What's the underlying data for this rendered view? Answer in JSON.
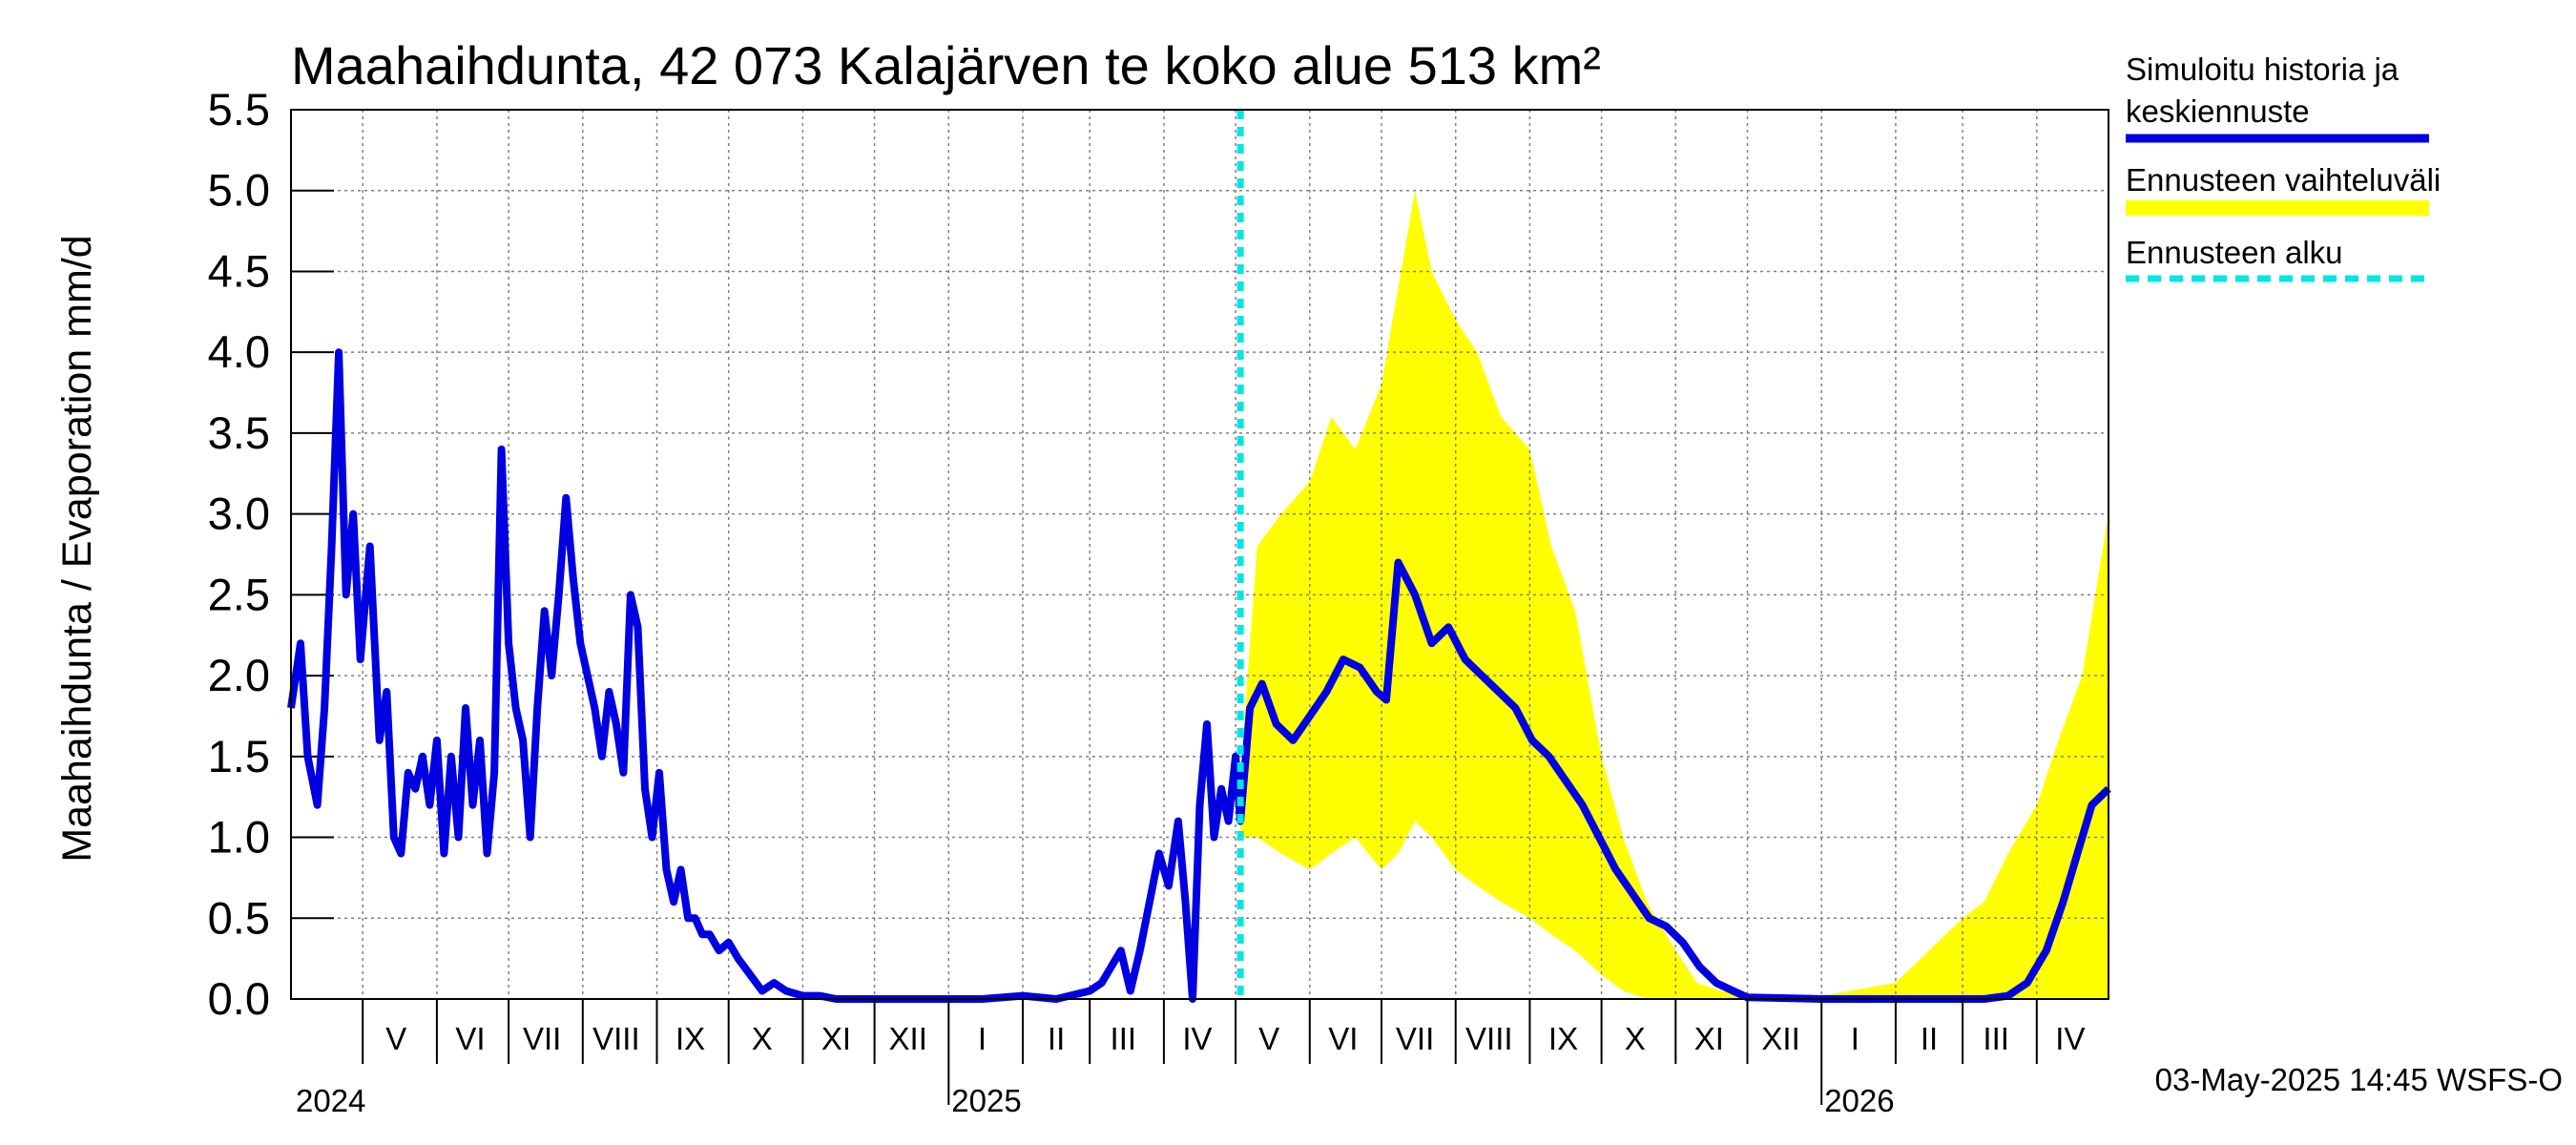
{
  "chart_data": {
    "type": "line",
    "title": "Maahaihdunta, 42 073 Kalajärven te koko alue 513 km²",
    "ylabel": "Maahaihdunta / Evaporation   mm/d",
    "ylim": [
      0,
      5.5
    ],
    "xlim": [
      "2024-04-01",
      "2026-05-01"
    ],
    "yticks": [
      "0.0",
      "0.5",
      "1.0",
      "1.5",
      "2.0",
      "2.5",
      "3.0",
      "3.5",
      "4.0",
      "4.5",
      "5.0",
      "5.5"
    ],
    "grid": true,
    "legend_position": "right",
    "months": [
      {
        "label": "V",
        "date": "2024-05-15"
      },
      {
        "label": "VI",
        "date": "2024-06-15"
      },
      {
        "label": "VII",
        "date": "2024-07-15"
      },
      {
        "label": "VIII",
        "date": "2024-08-15"
      },
      {
        "label": "IX",
        "date": "2024-09-15"
      },
      {
        "label": "X",
        "date": "2024-10-15"
      },
      {
        "label": "XI",
        "date": "2024-11-15"
      },
      {
        "label": "XII",
        "date": "2024-12-15"
      },
      {
        "label": "I",
        "date": "2025-01-15"
      },
      {
        "label": "II",
        "date": "2025-02-15"
      },
      {
        "label": "III",
        "date": "2025-03-15"
      },
      {
        "label": "IV",
        "date": "2025-04-15"
      },
      {
        "label": "V",
        "date": "2025-05-15"
      },
      {
        "label": "VI",
        "date": "2025-06-15"
      },
      {
        "label": "VII",
        "date": "2025-07-15"
      },
      {
        "label": "VIII",
        "date": "2025-08-15"
      },
      {
        "label": "IX",
        "date": "2025-09-15"
      },
      {
        "label": "X",
        "date": "2025-10-15"
      },
      {
        "label": "XI",
        "date": "2025-11-15"
      },
      {
        "label": "XII",
        "date": "2025-12-15"
      },
      {
        "label": "I",
        "date": "2026-01-15"
      },
      {
        "label": "II",
        "date": "2026-02-15"
      },
      {
        "label": "III",
        "date": "2026-03-15"
      },
      {
        "label": "IV",
        "date": "2026-04-15"
      }
    ],
    "years": [
      {
        "label": "2024",
        "date": "2024-04-01"
      },
      {
        "label": "2025",
        "date": "2025-01-01"
      },
      {
        "label": "2026",
        "date": "2026-01-01"
      }
    ],
    "forecast_start": "2025-05-03",
    "series": [
      {
        "name": "Simuloitu historia ja keskiennuste",
        "color": "#0000e0",
        "x": [
          "2024-04-01",
          "2024-04-05",
          "2024-04-08",
          "2024-04-12",
          "2024-04-15",
          "2024-04-18",
          "2024-04-21",
          "2024-04-24",
          "2024-04-27",
          "2024-04-30",
          "2024-05-04",
          "2024-05-08",
          "2024-05-11",
          "2024-05-14",
          "2024-05-17",
          "2024-05-20",
          "2024-05-23",
          "2024-05-26",
          "2024-05-29",
          "2024-06-01",
          "2024-06-04",
          "2024-06-07",
          "2024-06-10",
          "2024-06-13",
          "2024-06-16",
          "2024-06-19",
          "2024-06-22",
          "2024-06-25",
          "2024-06-28",
          "2024-07-01",
          "2024-07-04",
          "2024-07-07",
          "2024-07-10",
          "2024-07-13",
          "2024-07-16",
          "2024-07-19",
          "2024-07-22",
          "2024-07-25",
          "2024-07-28",
          "2024-07-31",
          "2024-08-03",
          "2024-08-06",
          "2024-08-09",
          "2024-08-12",
          "2024-08-15",
          "2024-08-18",
          "2024-08-21",
          "2024-08-24",
          "2024-08-27",
          "2024-08-30",
          "2024-09-02",
          "2024-09-05",
          "2024-09-08",
          "2024-09-11",
          "2024-09-14",
          "2024-09-17",
          "2024-09-20",
          "2024-09-23",
          "2024-09-27",
          "2024-10-01",
          "2024-10-05",
          "2024-10-10",
          "2024-10-15",
          "2024-10-20",
          "2024-10-25",
          "2024-11-01",
          "2024-11-08",
          "2024-11-15",
          "2024-11-22",
          "2024-12-01",
          "2024-12-15",
          "2025-01-01",
          "2025-01-15",
          "2025-02-01",
          "2025-02-15",
          "2025-03-01",
          "2025-03-06",
          "2025-03-10",
          "2025-03-14",
          "2025-03-18",
          "2025-03-22",
          "2025-03-26",
          "2025-03-30",
          "2025-04-03",
          "2025-04-07",
          "2025-04-10",
          "2025-04-13",
          "2025-04-16",
          "2025-04-19",
          "2025-04-22",
          "2025-04-25",
          "2025-04-28",
          "2025-05-01",
          "2025-05-03",
          "2025-05-07",
          "2025-05-12",
          "2025-05-18",
          "2025-05-25",
          "2025-06-01",
          "2025-06-08",
          "2025-06-15",
          "2025-06-22",
          "2025-06-29",
          "2025-07-03",
          "2025-07-08",
          "2025-07-15",
          "2025-07-22",
          "2025-07-29",
          "2025-08-05",
          "2025-08-12",
          "2025-08-19",
          "2025-08-26",
          "2025-09-02",
          "2025-09-09",
          "2025-09-16",
          "2025-09-23",
          "2025-09-30",
          "2025-10-07",
          "2025-10-14",
          "2025-10-21",
          "2025-10-28",
          "2025-11-04",
          "2025-11-11",
          "2025-11-18",
          "2025-11-25",
          "2025-12-01",
          "2026-01-01",
          "2026-02-01",
          "2026-03-01",
          "2026-03-10",
          "2026-03-20",
          "2026-03-28",
          "2026-04-05",
          "2026-04-12",
          "2026-04-18",
          "2026-04-24",
          "2026-05-01"
        ],
        "values": [
          1.8,
          2.2,
          1.5,
          1.2,
          1.8,
          2.8,
          4.0,
          2.5,
          3.0,
          2.1,
          2.8,
          1.6,
          1.9,
          1.0,
          0.9,
          1.4,
          1.3,
          1.5,
          1.2,
          1.6,
          0.9,
          1.5,
          1.0,
          1.8,
          1.2,
          1.6,
          0.9,
          1.4,
          3.4,
          2.2,
          1.8,
          1.6,
          1.0,
          1.8,
          2.4,
          2.0,
          2.5,
          3.1,
          2.6,
          2.2,
          2.0,
          1.8,
          1.5,
          1.9,
          1.7,
          1.4,
          2.5,
          2.3,
          1.3,
          1.0,
          1.4,
          0.8,
          0.6,
          0.8,
          0.5,
          0.5,
          0.4,
          0.4,
          0.3,
          0.35,
          0.25,
          0.15,
          0.05,
          0.1,
          0.05,
          0.02,
          0.02,
          0.0,
          0.0,
          0.0,
          0.0,
          0.0,
          0.0,
          0.02,
          0.0,
          0.05,
          0.1,
          0.2,
          0.3,
          0.05,
          0.3,
          0.6,
          0.9,
          0.7,
          1.1,
          0.6,
          0.0,
          1.2,
          1.7,
          1.0,
          1.3,
          1.1,
          1.5,
          1.1,
          1.8,
          1.95,
          1.7,
          1.6,
          1.75,
          1.9,
          2.1,
          2.05,
          1.9,
          1.85,
          2.7,
          2.5,
          2.2,
          2.3,
          2.1,
          2.0,
          1.9,
          1.8,
          1.6,
          1.5,
          1.35,
          1.2,
          1.0,
          0.8,
          0.65,
          0.5,
          0.45,
          0.35,
          0.2,
          0.1,
          0.05,
          0.01,
          0.0,
          0.0,
          0.0,
          0.0,
          0.02,
          0.1,
          0.3,
          0.6,
          0.9,
          1.2,
          1.3
        ]
      }
    ],
    "band": {
      "name": "Ennusteen vaihteluväli",
      "color": "#ffff00",
      "x": [
        "2025-05-03",
        "2025-05-10",
        "2025-05-20",
        "2025-06-01",
        "2025-06-10",
        "2025-06-20",
        "2025-07-01",
        "2025-07-08",
        "2025-07-15",
        "2025-07-22",
        "2025-08-01",
        "2025-08-10",
        "2025-08-20",
        "2025-09-01",
        "2025-09-10",
        "2025-09-20",
        "2025-10-01",
        "2025-10-10",
        "2025-10-20",
        "2025-11-01",
        "2025-11-10",
        "2025-11-20",
        "2025-12-01",
        "2026-01-01",
        "2026-02-01",
        "2026-03-01",
        "2026-03-10",
        "2026-03-20",
        "2026-04-01",
        "2026-04-10",
        "2026-04-20",
        "2026-05-01"
      ],
      "upper": [
        1.4,
        2.8,
        3.0,
        3.2,
        3.6,
        3.4,
        3.8,
        4.4,
        5.0,
        4.5,
        4.2,
        4.0,
        3.6,
        3.4,
        2.8,
        2.4,
        1.5,
        1.0,
        0.6,
        0.3,
        0.1,
        0.05,
        0.02,
        0.02,
        0.1,
        0.5,
        0.6,
        0.9,
        1.2,
        1.6,
        2.0,
        3.0
      ],
      "lower": [
        1.0,
        1.0,
        0.9,
        0.8,
        0.9,
        1.0,
        0.8,
        0.9,
        1.1,
        1.0,
        0.8,
        0.7,
        0.6,
        0.5,
        0.4,
        0.3,
        0.15,
        0.05,
        0.0,
        0.0,
        0.0,
        0.0,
        0.0,
        0.0,
        0.0,
        0.0,
        0.0,
        0.0,
        0.0,
        0.0,
        0.0,
        0.0
      ]
    },
    "legend": [
      {
        "label": "Simuloitu historia ja",
        "label2": "keskiennuste",
        "color": "#0000e0",
        "style": "line"
      },
      {
        "label": "Ennusteen vaihteluväli",
        "label2": "",
        "color": "#ffff00",
        "style": "band"
      },
      {
        "label": "Ennusteen alku",
        "label2": "",
        "color": "#00e5e5",
        "style": "dashed"
      }
    ]
  },
  "footer": "03-May-2025 14:45 WSFS-O"
}
